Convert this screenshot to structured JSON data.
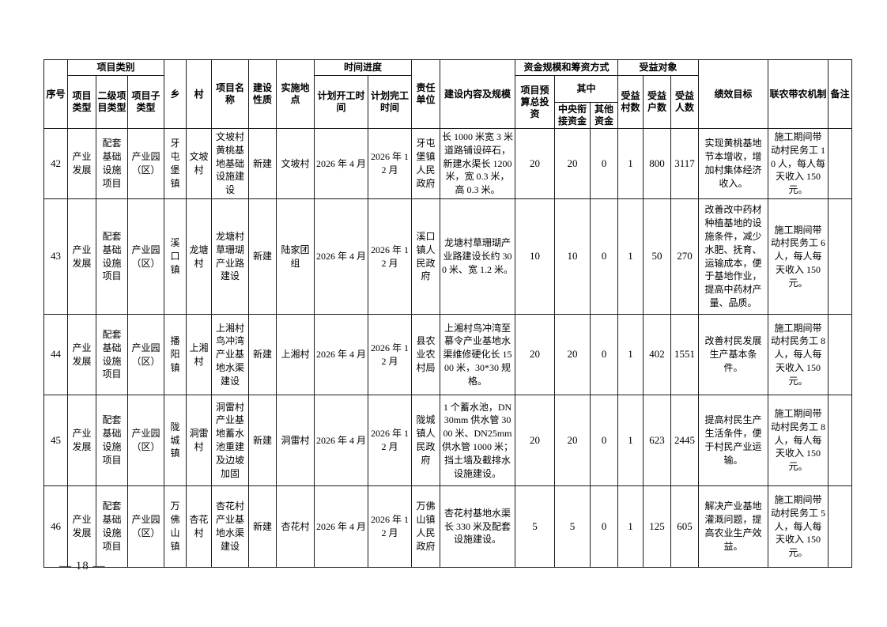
{
  "page": {
    "number_label": "— 18 —"
  },
  "table": {
    "header": {
      "xuhao": "序号",
      "xiangmu_leibie": "项目类别",
      "xiangmu_leixing": "项目类型",
      "erji_leixing": "二级项目类型",
      "zi_leixing": "项目子类型",
      "xiang": "乡",
      "cun": "村",
      "mingcheng": "项目名称",
      "jianshe_xingzhi": "建设性质",
      "shishi_didian": "实施地点",
      "shijian_jindu": "时间进度",
      "kaigong": "计划开工时间",
      "wangong": "计划完工时间",
      "zeren_danwei": "责任单位",
      "neirong_guimo": "建设内容及规模",
      "zijin_fangshi": "资金规模和筹资方式",
      "yusuan_touzi": "项目预算总投资",
      "qizhong": "其中",
      "zhongyang_zijin": "中央衔接资金",
      "qita_zijin": "其他资金",
      "shouyi_duixiang": "受益对象",
      "shouyi_cunshu": "受益村数",
      "shouyi_hushu": "受益户数",
      "shouyi_renshu": "受益人数",
      "jixiao_mubiao": "绩效目标",
      "liannong_jizhi": "联农带农机制",
      "beizhu": "备注"
    },
    "rows": [
      {
        "cells": [
          "42",
          "产业发展",
          "配套基础设施项目",
          "产业园（区）",
          "牙屯堡镇",
          "文坡村",
          "文坡村黄桃基地基础设施建设",
          "新建",
          "文坡村",
          "2026 年 4 月",
          "2026 年 12 月",
          "牙屯堡镇人民政府",
          "长 1000 米宽 3 米道路铺设碎石，新建水渠长 1200 米，宽 0.3 米，高 0.3 米。",
          "20",
          "20",
          "0",
          "1",
          "800",
          "3117",
          "实现黄桃基地节本增收，增加村集体经济收入。",
          "施工期间带动村民务工 10 人，每人每天收入 150 元。",
          ""
        ]
      },
      {
        "cells": [
          "43",
          "产业发展",
          "配套基础设施项目",
          "产业园（区）",
          "溪口镇",
          "龙塘村",
          "龙塘村草珊瑚产业路建设",
          "新建",
          "陆家团组",
          "2026 年 4 月",
          "2026 年 12 月",
          "溪口镇人民政府",
          "龙塘村草珊瑚产业路建设长约 300 米、宽 1.2 米。",
          "10",
          "10",
          "0",
          "1",
          "50",
          "270",
          "改善改中药材种植基地的设施条件，减少水肥、抚育、运输成本，便于基地作业，提高中药材产量、品质。",
          "施工期间带动村民务工 6 人，每人每天收入 150 元。",
          ""
        ]
      },
      {
        "cells": [
          "44",
          "产业发展",
          "配套基础设施项目",
          "产业园（区）",
          "播阳镇",
          "上湘村",
          "上湘村鸟冲湾产业基地水渠建设",
          "新建",
          "上湘村",
          "2026 年 4 月",
          "2026 年 12 月",
          "县农业农村局",
          "上湘村鸟冲湾至慕令产业基地水渠维修硬化长 1500 米，30*30 规格。",
          "20",
          "20",
          "0",
          "1",
          "402",
          "1551",
          "改善村民发展生产基本条件。",
          "施工期间带动村民务工 8 人，每人每天收入 150 元。",
          ""
        ]
      },
      {
        "cells": [
          "45",
          "产业发展",
          "配套基础设施项目",
          "产业园（区）",
          "陇城镇",
          "洞雷村",
          "洞雷村产业基地蓄水池重建及边坡加固",
          "新建",
          "洞雷村",
          "2026 年 4 月",
          "2026 年 12 月",
          "陇城镇人民政府",
          "1 个蓄水池，DN30mm 供水管 3000 米、DN25mm 供水管 1000 米；挡土墙及截排水设施建设。",
          "20",
          "20",
          "0",
          "1",
          "623",
          "2445",
          "提高村民生产生活条件，便于村民产业运输。",
          "施工期间带动村民务工 8 人，每人每天收入 150 元。",
          ""
        ]
      },
      {
        "cells": [
          "46",
          "产业发展",
          "配套基础设施项目",
          "产业园（区）",
          "万佛山镇",
          "杏花村",
          "杏花村产业基地水渠建设",
          "新建",
          "杏花村",
          "2026 年 4 月",
          "2026 年 12 月",
          "万佛山镇人民政府",
          "杏花村基地水渠长 330 米及配套设施建设。",
          "5",
          "5",
          "0",
          "1",
          "125",
          "605",
          "解决产业基地灌溉问题，提高农业生产效益。",
          "施工期间带动村民务工 5 人，每人每天收入 150 元。",
          ""
        ]
      }
    ]
  }
}
